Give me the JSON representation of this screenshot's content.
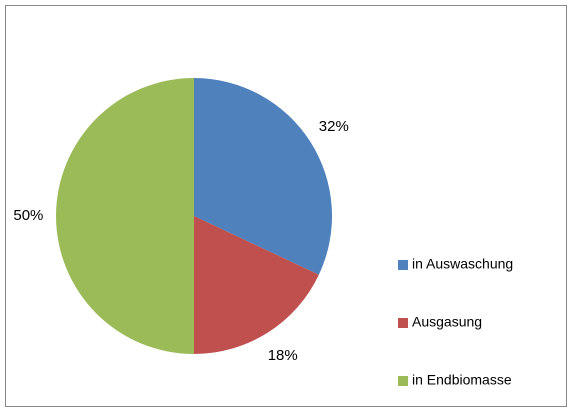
{
  "chart_data": {
    "type": "pie",
    "categories": [
      "in Auswaschung",
      "Ausgasung",
      "in Endbiomasse"
    ],
    "values": [
      32,
      18,
      50
    ],
    "value_labels": [
      "32%",
      "18%",
      "50%"
    ],
    "colors": [
      "#4f81bd",
      "#c0504d",
      "#9bbb59"
    ],
    "legend": "right"
  }
}
